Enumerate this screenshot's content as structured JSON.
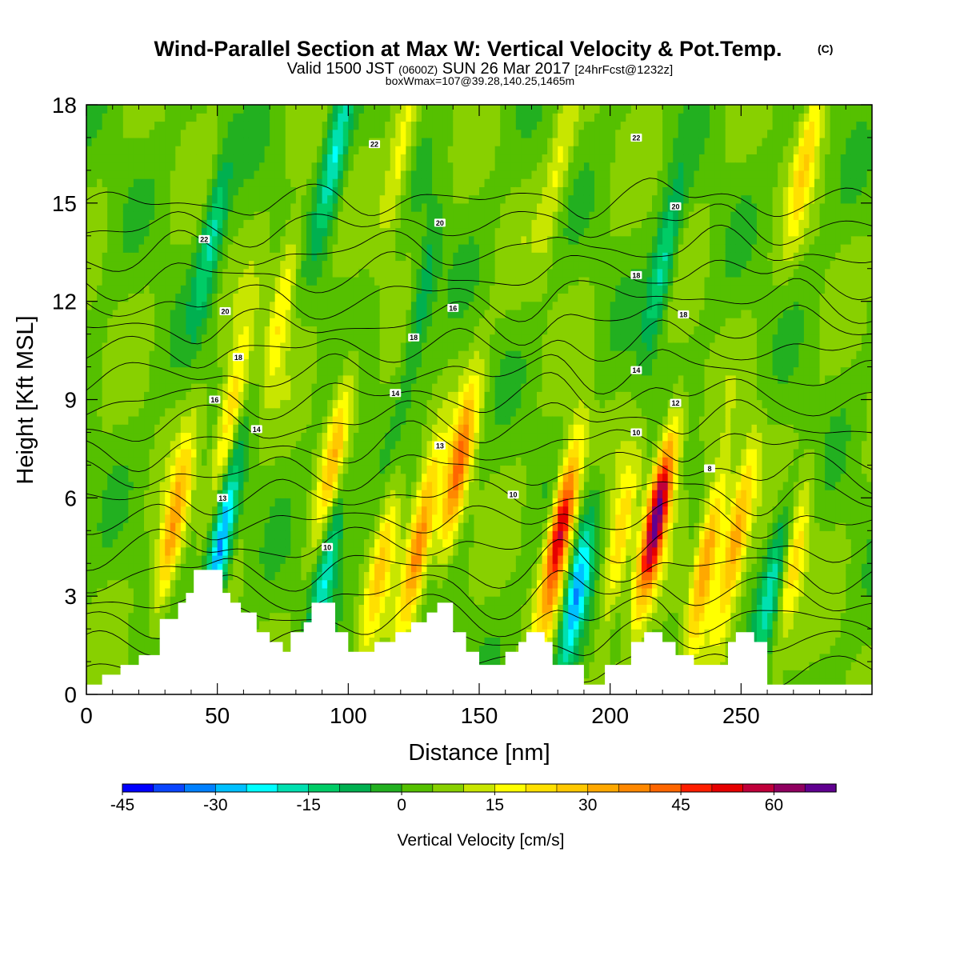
{
  "chart_data": {
    "type": "heatmap",
    "title": "Wind-Parallel Section at Max W: Vertical Velocity & Pot.Temp.",
    "title_mark": "(C)",
    "subtitle_parts": {
      "a": "Valid 1500 JST",
      "b": "(0600Z)",
      "c": "SUN 26 Mar 2017",
      "d": "[24hrFcst@1232z]"
    },
    "subtitle2": "boxWmax=107@39.28,140.25,1465m",
    "xlabel": "Distance [nm]",
    "ylabel": "Height [Kft MSL]",
    "xlim": [
      0,
      300
    ],
    "ylim": [
      0,
      18
    ],
    "x_ticks": [
      "0",
      "50",
      "100",
      "150",
      "200",
      "250"
    ],
    "x_tick_values": [
      0,
      50,
      100,
      150,
      200,
      250
    ],
    "y_ticks": [
      "0",
      "3",
      "6",
      "9",
      "12",
      "15",
      "18"
    ],
    "y_tick_values": [
      0,
      3,
      6,
      9,
      12,
      15,
      18
    ],
    "colorbar": {
      "label": "Vertical Velocity [cm/s]",
      "min": -45,
      "max": 70,
      "step": 5,
      "tick_labels": [
        "-45",
        "-30",
        "-15",
        "0",
        "15",
        "30",
        "45",
        "60"
      ],
      "tick_values": [
        -45,
        -30,
        -15,
        0,
        15,
        30,
        45,
        60
      ],
      "colors": [
        "#0000ff",
        "#0a45ff",
        "#0080ff",
        "#00c0ff",
        "#00ffff",
        "#00e0b0",
        "#00cc66",
        "#00b050",
        "#22b020",
        "#55c000",
        "#88d000",
        "#c8e600",
        "#ffff00",
        "#ffe000",
        "#ffc800",
        "#ffa800",
        "#ff8800",
        "#ff6600",
        "#ff1e00",
        "#e60000",
        "#c0003a",
        "#900060",
        "#600090"
      ]
    },
    "updrafts": [
      {
        "x": 33,
        "z": 5.0,
        "w": 30
      },
      {
        "x": 55,
        "z": 8.5,
        "w": 25
      },
      {
        "x": 75,
        "z": 12.0,
        "w": 18
      },
      {
        "x": 95,
        "z": 7.5,
        "w": 25
      },
      {
        "x": 113,
        "z": 4.2,
        "w": 20
      },
      {
        "x": 127,
        "z": 4.5,
        "w": 35
      },
      {
        "x": 142,
        "z": 6.8,
        "w": 38
      },
      {
        "x": 181,
        "z": 5.0,
        "w": 55
      },
      {
        "x": 203,
        "z": 4.5,
        "w": 22
      },
      {
        "x": 218,
        "z": 5.5,
        "w": 62
      },
      {
        "x": 237,
        "z": 4.2,
        "w": 35
      },
      {
        "x": 248,
        "z": 4.8,
        "w": 32
      },
      {
        "x": 270,
        "z": 4.0,
        "w": 20
      },
      {
        "x": 120,
        "z": 16.5,
        "w": 15
      },
      {
        "x": 180,
        "z": 16.0,
        "w": 12
      },
      {
        "x": 275,
        "z": 16.5,
        "w": 18
      }
    ],
    "downdrafts": [
      {
        "x": 51,
        "z": 4.5,
        "w": -40
      },
      {
        "x": 48,
        "z": 14.0,
        "w": -20
      },
      {
        "x": 92,
        "z": 4.0,
        "w": -25
      },
      {
        "x": 95,
        "z": 16.5,
        "w": -25
      },
      {
        "x": 187,
        "z": 3.0,
        "w": -35
      },
      {
        "x": 220,
        "z": 13.0,
        "w": -22
      },
      {
        "x": 128,
        "z": 12.0,
        "w": -15
      },
      {
        "x": 262,
        "z": 3.5,
        "w": -20
      }
    ],
    "terrain": [
      [
        0,
        0.3
      ],
      [
        6,
        0.3
      ],
      [
        6,
        0.6
      ],
      [
        13,
        0.6
      ],
      [
        13,
        0.9
      ],
      [
        20,
        0.9
      ],
      [
        20,
        1.2
      ],
      [
        28,
        1.2
      ],
      [
        28,
        2.3
      ],
      [
        35,
        2.3
      ],
      [
        35,
        2.8
      ],
      [
        38,
        2.8
      ],
      [
        38,
        3.1
      ],
      [
        41,
        3.1
      ],
      [
        41,
        3.8
      ],
      [
        52,
        3.8
      ],
      [
        52,
        3.1
      ],
      [
        55,
        3.1
      ],
      [
        55,
        2.8
      ],
      [
        59,
        2.8
      ],
      [
        59,
        2.5
      ],
      [
        65,
        2.5
      ],
      [
        65,
        1.9
      ],
      [
        70,
        1.9
      ],
      [
        70,
        1.6
      ],
      [
        75,
        1.6
      ],
      [
        75,
        1.3
      ],
      [
        78,
        1.3
      ],
      [
        78,
        1.9
      ],
      [
        83,
        1.9
      ],
      [
        83,
        2.2
      ],
      [
        86,
        2.2
      ],
      [
        86,
        2.8
      ],
      [
        95,
        2.8
      ],
      [
        95,
        1.9
      ],
      [
        100,
        1.9
      ],
      [
        100,
        1.3
      ],
      [
        110,
        1.3
      ],
      [
        110,
        1.6
      ],
      [
        118,
        1.6
      ],
      [
        118,
        1.9
      ],
      [
        124,
        1.9
      ],
      [
        124,
        2.2
      ],
      [
        130,
        2.2
      ],
      [
        130,
        2.5
      ],
      [
        134,
        2.5
      ],
      [
        134,
        2.8
      ],
      [
        140,
        2.8
      ],
      [
        140,
        1.9
      ],
      [
        145,
        1.9
      ],
      [
        145,
        1.3
      ],
      [
        150,
        1.3
      ],
      [
        150,
        0.9
      ],
      [
        160,
        0.9
      ],
      [
        160,
        1.3
      ],
      [
        165,
        1.3
      ],
      [
        165,
        1.6
      ],
      [
        168,
        1.6
      ],
      [
        168,
        1.9
      ],
      [
        175,
        1.9
      ],
      [
        175,
        1.6
      ],
      [
        178,
        1.6
      ],
      [
        178,
        0.9
      ],
      [
        190,
        0.9
      ],
      [
        190,
        0.3
      ],
      [
        198,
        0.3
      ],
      [
        198,
        0.9
      ],
      [
        208,
        0.9
      ],
      [
        208,
        1.6
      ],
      [
        213,
        1.6
      ],
      [
        213,
        1.9
      ],
      [
        220,
        1.9
      ],
      [
        220,
        1.6
      ],
      [
        225,
        1.6
      ],
      [
        225,
        1.2
      ],
      [
        232,
        1.2
      ],
      [
        232,
        0.9
      ],
      [
        245,
        0.9
      ],
      [
        245,
        1.6
      ],
      [
        248,
        1.6
      ],
      [
        248,
        1.9
      ],
      [
        255,
        1.9
      ],
      [
        255,
        1.6
      ],
      [
        260,
        1.6
      ],
      [
        260,
        0.3
      ],
      [
        300,
        0.3
      ],
      [
        300,
        0
      ]
    ],
    "theta_contours": {
      "levels": [
        6,
        7,
        8,
        9,
        10,
        11,
        12,
        13,
        14,
        15,
        16,
        17,
        18,
        19,
        20,
        21,
        22,
        23,
        24,
        25
      ],
      "labels": [
        {
          "text": "22",
          "x": 110,
          "z": 16.8
        },
        {
          "text": "22",
          "x": 210,
          "z": 17.0
        },
        {
          "text": "22",
          "x": 45,
          "z": 13.9
        },
        {
          "text": "20",
          "x": 135,
          "z": 14.4
        },
        {
          "text": "20",
          "x": 225,
          "z": 14.9
        },
        {
          "text": "20",
          "x": 53,
          "z": 11.7
        },
        {
          "text": "18",
          "x": 58,
          "z": 10.3
        },
        {
          "text": "18",
          "x": 125,
          "z": 10.9
        },
        {
          "text": "18",
          "x": 210,
          "z": 12.8
        },
        {
          "text": "18",
          "x": 228,
          "z": 11.6
        },
        {
          "text": "16",
          "x": 49,
          "z": 9.0
        },
        {
          "text": "16",
          "x": 140,
          "z": 11.8
        },
        {
          "text": "14",
          "x": 65,
          "z": 8.1
        },
        {
          "text": "14",
          "x": 118,
          "z": 9.2
        },
        {
          "text": "14",
          "x": 210,
          "z": 9.9
        },
        {
          "text": "13",
          "x": 52,
          "z": 6.0
        },
        {
          "text": "13",
          "x": 135,
          "z": 7.6
        },
        {
          "text": "12",
          "x": 225,
          "z": 8.9
        },
        {
          "text": "10",
          "x": 92,
          "z": 4.5
        },
        {
          "text": "10",
          "x": 163,
          "z": 6.1
        },
        {
          "text": "10",
          "x": 210,
          "z": 8.0
        },
        {
          "text": "8",
          "x": 238,
          "z": 6.9
        }
      ]
    }
  }
}
